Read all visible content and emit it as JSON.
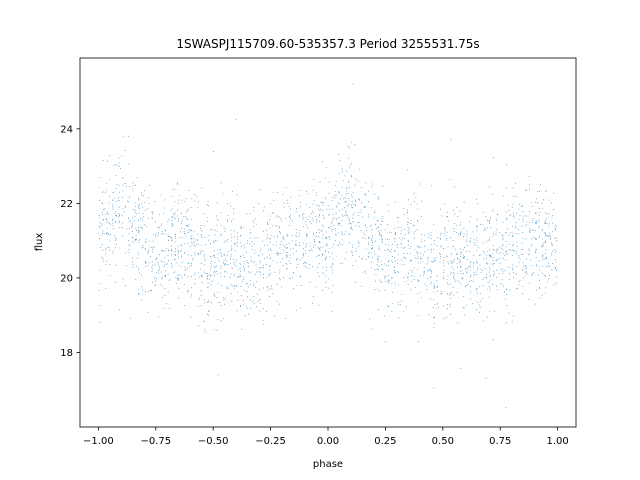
{
  "chart_data": {
    "type": "scatter",
    "title": "1SWASPJ115709.60-535357.3 Period 3255531.75s",
    "xlabel": "phase",
    "ylabel": "flux",
    "xlim": [
      -1.08,
      1.08
    ],
    "ylim": [
      16.0,
      25.9
    ],
    "xticks": [
      -1.0,
      -0.75,
      -0.5,
      -0.25,
      0.0,
      0.25,
      0.5,
      0.75,
      1.0
    ],
    "xtick_labels": [
      "−1.00",
      "−0.75",
      "−0.50",
      "−0.25",
      "0.00",
      "0.25",
      "0.50",
      "0.75",
      "1.00"
    ],
    "yticks": [
      18,
      20,
      22,
      24
    ],
    "ytick_labels": [
      "18",
      "20",
      "22",
      "24"
    ],
    "grid": false,
    "legend": "none",
    "color": "#1f77b4",
    "series": [
      {
        "profile_phase": [
          0.0,
          0.05,
          0.1,
          0.15,
          0.2,
          0.25,
          0.3,
          0.35,
          0.4,
          0.45,
          0.5,
          0.55,
          0.6,
          0.65,
          0.7,
          0.75,
          0.8,
          0.85,
          0.9,
          0.95,
          1.0
        ],
        "profile_flux": [
          21.0,
          21.6,
          21.9,
          21.3,
          21.0,
          20.5,
          20.7,
          21.0,
          20.8,
          20.1,
          20.3,
          20.6,
          20.4,
          20.3,
          20.4,
          20.8,
          20.8,
          20.9,
          21.0,
          21.1,
          21.0
        ],
        "scatter_sd": 0.75,
        "outlier_range": [
          16.4,
          25.3
        ],
        "x_range": [
          -1.0,
          1.0
        ]
      }
    ]
  }
}
